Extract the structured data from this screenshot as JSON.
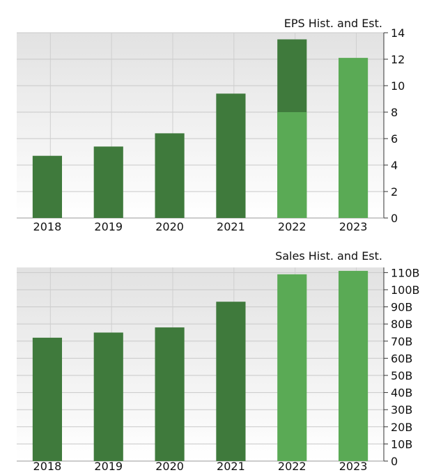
{
  "chart_data": [
    {
      "type": "bar",
      "title": "EPS Hist. and Est.",
      "categories": [
        "2018",
        "2019",
        "2020",
        "2021",
        "2022",
        "2023"
      ],
      "series": [
        {
          "values": [
            4.7,
            5.4,
            6.4,
            9.4,
            13.5,
            null
          ],
          "color": "#3f7a3c"
        },
        {
          "values": [
            null,
            null,
            null,
            null,
            8.0,
            12.1
          ],
          "color": "#5aaa55"
        }
      ],
      "ylim": [
        0,
        14
      ],
      "yticks": [
        0,
        2,
        4,
        6,
        8,
        10,
        12,
        14
      ],
      "ytick_labels": [
        "0",
        "2",
        "4",
        "6",
        "8",
        "10",
        "12",
        "14"
      ],
      "grid": true,
      "legend": "none"
    },
    {
      "type": "bar",
      "title": "Sales Hist. and Est.",
      "categories": [
        "2018",
        "2019",
        "2020",
        "2021",
        "2022",
        "2023"
      ],
      "series": [
        {
          "values": [
            72000000000,
            75000000000,
            78000000000,
            93000000000,
            null,
            null
          ],
          "color": "#3f7a3c"
        },
        {
          "values": [
            null,
            null,
            null,
            null,
            109000000000,
            111000000000
          ],
          "color": "#5aaa55"
        }
      ],
      "ylim": [
        0,
        113000000000
      ],
      "yticks": [
        0,
        10000000000,
        20000000000,
        30000000000,
        40000000000,
        50000000000,
        60000000000,
        70000000000,
        80000000000,
        90000000000,
        100000000000,
        110000000000
      ],
      "ytick_labels": [
        "0",
        "10B",
        "20B",
        "30B",
        "40B",
        "50B",
        "60B",
        "70B",
        "80B",
        "90B",
        "100B",
        "110B"
      ],
      "grid": true,
      "legend": "none"
    }
  ]
}
